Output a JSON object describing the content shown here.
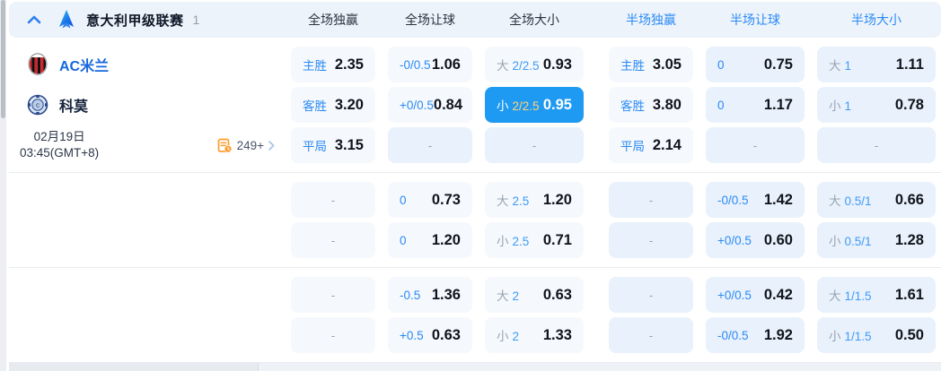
{
  "league_header": {
    "title": "意大利甲级联赛",
    "count": "1",
    "columns": [
      {
        "label": "全场独赢",
        "period": "full"
      },
      {
        "label": "全场让球",
        "period": "full"
      },
      {
        "label": "全场大小",
        "period": "full"
      },
      {
        "label": "半场独赢",
        "period": "half"
      },
      {
        "label": "半场让球",
        "period": "half"
      },
      {
        "label": "半场大小",
        "period": "half"
      }
    ]
  },
  "match": {
    "home_team": "AC米兰",
    "away_team": "科莫",
    "date": "02月19日",
    "time": "03:45(GMT+8)",
    "more_markets": "249+"
  },
  "colors": {
    "accent_blue": "#2a8af5",
    "half_header_blue": "#2a8af5",
    "selected_cell_bg": "#1f9af2",
    "selected_line_amber": "#ffd37a",
    "cell_base_bg": "#f5f8fc",
    "cell_tint_bg": "#e9f1fc",
    "header_bg": "#edf3fa",
    "home_team_blue": "#1667dd",
    "markets_icon_orange": "#ff9d2e"
  },
  "sections": [
    {
      "rows": [
        [
          {
            "type": "label",
            "label": "主胜",
            "value": "2.35"
          },
          {
            "type": "label",
            "label": "-0/0.5",
            "value": "1.06"
          },
          {
            "type": "ou",
            "side": "大",
            "line": "2/2.5",
            "value": "0.93"
          },
          {
            "type": "label",
            "label": "主胜",
            "value": "3.05"
          },
          {
            "type": "label",
            "label": "0",
            "value": "0.75",
            "tint": true
          },
          {
            "type": "ou",
            "side": "大",
            "line": "1",
            "value": "1.11",
            "tint": true
          }
        ],
        [
          {
            "type": "label",
            "label": "客胜",
            "value": "3.20"
          },
          {
            "type": "label",
            "label": "+0/0.5",
            "value": "0.84"
          },
          {
            "type": "ou",
            "side": "小",
            "line": "2/2.5",
            "value": "0.95",
            "selected": true
          },
          {
            "type": "label",
            "label": "客胜",
            "value": "3.80"
          },
          {
            "type": "label",
            "label": "0",
            "value": "1.17",
            "tint": true
          },
          {
            "type": "ou",
            "side": "小",
            "line": "1",
            "value": "0.78",
            "tint": true
          }
        ],
        [
          {
            "type": "label",
            "label": "平局",
            "value": "3.15"
          },
          {
            "type": "empty",
            "tint": true
          },
          {
            "type": "empty",
            "tint": true
          },
          {
            "type": "label",
            "label": "平局",
            "value": "2.14"
          },
          {
            "type": "empty",
            "tint": true
          },
          {
            "type": "empty",
            "tint": true
          }
        ]
      ]
    },
    {
      "rows": [
        [
          {
            "type": "empty"
          },
          {
            "type": "label",
            "label": "0",
            "value": "0.73"
          },
          {
            "type": "ou",
            "side": "大",
            "line": "2.5",
            "value": "1.20"
          },
          {
            "type": "empty",
            "tint": true
          },
          {
            "type": "label",
            "label": "-0/0.5",
            "value": "1.42",
            "tint": true
          },
          {
            "type": "ou",
            "side": "大",
            "line": "0.5/1",
            "value": "0.66",
            "tint": true
          }
        ],
        [
          {
            "type": "empty"
          },
          {
            "type": "label",
            "label": "0",
            "value": "1.20"
          },
          {
            "type": "ou",
            "side": "小",
            "line": "2.5",
            "value": "0.71"
          },
          {
            "type": "empty",
            "tint": true
          },
          {
            "type": "label",
            "label": "+0/0.5",
            "value": "0.60",
            "tint": true
          },
          {
            "type": "ou",
            "side": "小",
            "line": "0.5/1",
            "value": "1.28",
            "tint": true
          }
        ]
      ]
    },
    {
      "rows": [
        [
          {
            "type": "empty"
          },
          {
            "type": "label",
            "label": "-0.5",
            "value": "1.36"
          },
          {
            "type": "ou",
            "side": "大",
            "line": "2",
            "value": "0.63"
          },
          {
            "type": "empty",
            "tint": true
          },
          {
            "type": "label",
            "label": "+0/0.5",
            "value": "0.42",
            "tint": true
          },
          {
            "type": "ou",
            "side": "大",
            "line": "1/1.5",
            "value": "1.61",
            "tint": true
          }
        ],
        [
          {
            "type": "empty"
          },
          {
            "type": "label",
            "label": "+0.5",
            "value": "0.63"
          },
          {
            "type": "ou",
            "side": "小",
            "line": "2",
            "value": "1.33"
          },
          {
            "type": "empty",
            "tint": true
          },
          {
            "type": "label",
            "label": "-0/0.5",
            "value": "1.92",
            "tint": true
          },
          {
            "type": "ou",
            "side": "小",
            "line": "1/1.5",
            "value": "0.50",
            "tint": true
          }
        ]
      ]
    }
  ]
}
